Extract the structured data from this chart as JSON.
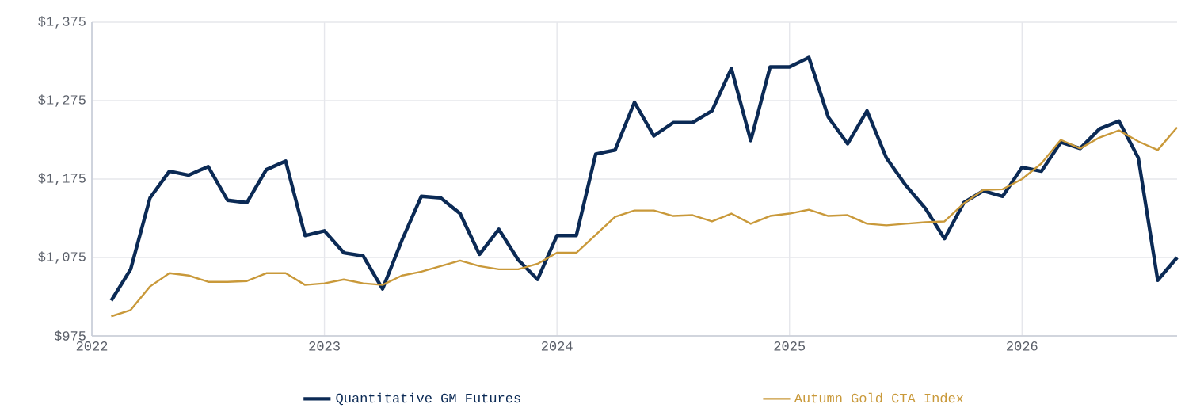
{
  "chart_data": {
    "type": "line",
    "x": [
      "2022-02",
      "2022-03",
      "2022-04",
      "2022-05",
      "2022-06",
      "2022-07",
      "2022-08",
      "2022-09",
      "2022-10",
      "2022-11",
      "2022-12",
      "2023-01",
      "2023-02",
      "2023-03",
      "2023-04",
      "2023-05",
      "2023-06",
      "2023-07",
      "2023-08",
      "2023-09",
      "2023-10",
      "2023-11",
      "2023-12",
      "2024-01",
      "2024-02",
      "2024-03",
      "2024-04",
      "2024-05",
      "2024-06",
      "2024-07",
      "2024-08",
      "2024-09",
      "2024-10",
      "2024-11",
      "2024-12",
      "2025-01",
      "2025-02",
      "2025-03",
      "2025-04",
      "2025-05",
      "2025-06",
      "2025-07",
      "2025-08",
      "2025-09",
      "2025-10",
      "2025-11",
      "2025-12",
      "2026-01",
      "2026-02",
      "2026-03",
      "2026-04",
      "2026-05",
      "2026-06",
      "2026-07",
      "2026-08",
      "2026-09"
    ],
    "series": [
      {
        "name": "Quantitative GM Futures",
        "color": "#0b2a55",
        "values": [
          1020,
          1060,
          1151,
          1185,
          1180,
          1191,
          1148,
          1145,
          1187,
          1198,
          1103,
          1109,
          1081,
          1077,
          1035,
          1097,
          1153,
          1151,
          1131,
          1079,
          1111,
          1072,
          1047,
          1103,
          1103,
          1207,
          1212,
          1273,
          1230,
          1247,
          1247,
          1262,
          1316,
          1224,
          1318,
          1318,
          1330,
          1254,
          1220,
          1262,
          1202,
          1167,
          1138,
          1099,
          1145,
          1160,
          1153,
          1190,
          1185,
          1222,
          1214,
          1239,
          1249,
          1202,
          1046,
          1075
        ]
      },
      {
        "name": "Autumn Gold CTA Index",
        "color": "#c9993a",
        "values": [
          1000,
          1008,
          1038,
          1055,
          1052,
          1044,
          1044,
          1045,
          1055,
          1055,
          1040,
          1042,
          1047,
          1042,
          1040,
          1052,
          1057,
          1064,
          1071,
          1064,
          1060,
          1060,
          1067,
          1081,
          1081,
          1104,
          1127,
          1135,
          1135,
          1128,
          1129,
          1121,
          1131,
          1118,
          1128,
          1131,
          1136,
          1128,
          1129,
          1118,
          1116,
          1118,
          1120,
          1121,
          1144,
          1161,
          1162,
          1175,
          1195,
          1225,
          1214,
          1228,
          1237,
          1223,
          1212,
          1241
        ]
      }
    ],
    "xlim": [
      "2022-01",
      "2026-09"
    ],
    "xticks": [
      "2022",
      "2023",
      "2024",
      "2025",
      "2026"
    ],
    "ylim": [
      975,
      1375
    ],
    "yticks": [
      {
        "value": 975,
        "label": "$975"
      },
      {
        "value": 1075,
        "label": "$1,075"
      },
      {
        "value": 1175,
        "label": "$1,175"
      },
      {
        "value": 1275,
        "label": "$1,275"
      },
      {
        "value": 1375,
        "label": "$1,375"
      }
    ],
    "grid": true,
    "legend": "bottom"
  }
}
